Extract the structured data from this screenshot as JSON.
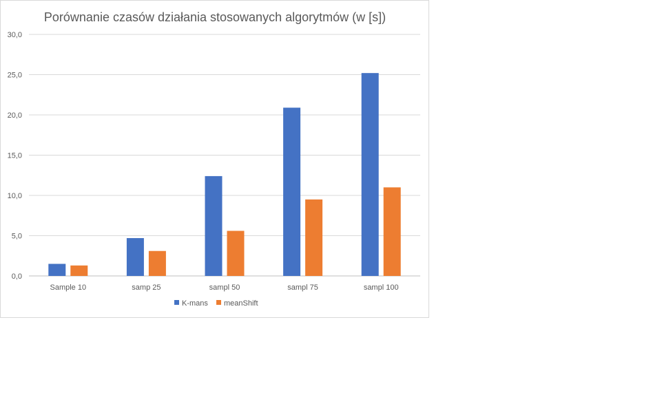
{
  "chart_data": {
    "type": "bar",
    "title": "Porównanie czasów działania stosowanych algorytmów (w [s])",
    "xlabel": "",
    "ylabel": "",
    "categories": [
      "Sample 10",
      "samp 25",
      "sampl 50",
      "sampl 75",
      "sampl 100"
    ],
    "series": [
      {
        "name": "K-mans",
        "color": "#4472c4",
        "values": [
          1.5,
          4.7,
          12.4,
          20.9,
          25.2
        ]
      },
      {
        "name": "meanShift",
        "color": "#ed7d31",
        "values": [
          1.3,
          3.1,
          5.6,
          9.5,
          11.0
        ]
      }
    ],
    "ylim": [
      0,
      30
    ],
    "yticks": [
      "0,0",
      "5,0",
      "10,0",
      "15,0",
      "20,0",
      "25,0",
      "30,0"
    ],
    "grid": true,
    "legend_position": "bottom"
  }
}
